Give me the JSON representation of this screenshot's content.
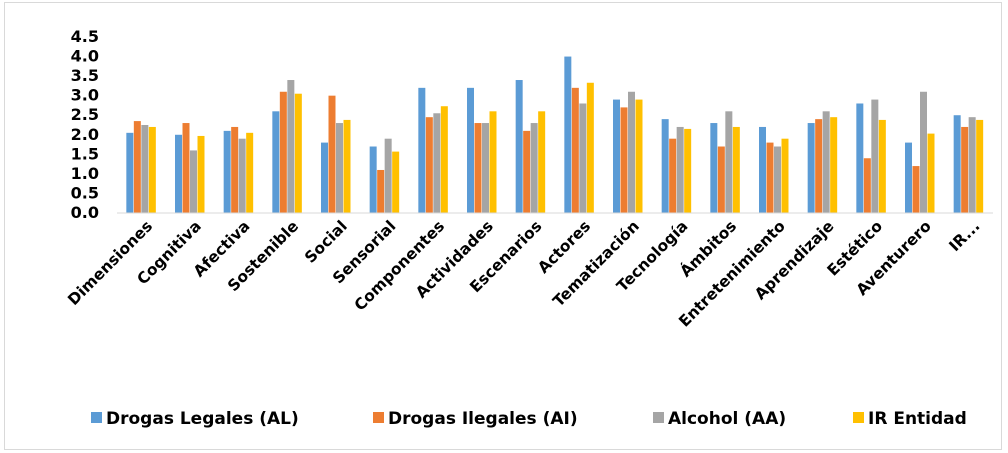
{
  "chart_data": {
    "type": "bar",
    "title": "",
    "xlabel": "",
    "ylabel": "",
    "ylim": [
      0,
      4.5
    ],
    "yticks": [
      "0.0",
      "0.5",
      "1.0",
      "1.5",
      "2.0",
      "2.5",
      "3.0",
      "3.5",
      "4.0",
      "4.5"
    ],
    "grid": false,
    "legend_position": "bottom",
    "categories": [
      "Dimensiones",
      "Cognitiva",
      "Afectiva",
      "Sostenible",
      "Social",
      "Sensorial",
      "Componentes",
      "Actividades",
      "Escenarios",
      "Actores",
      "Tematización",
      "Tecnología",
      "Ámbitos",
      "Entretenimiento",
      "Aprendizaje",
      "Estético",
      "Aventurero",
      "IR..."
    ],
    "series": [
      {
        "name": "Drogas Legales (AL)",
        "color": "#5b9bd5",
        "values": [
          2.05,
          2.0,
          2.1,
          2.6,
          1.8,
          1.7,
          3.2,
          3.2,
          3.4,
          4.0,
          2.9,
          2.4,
          2.3,
          2.2,
          2.3,
          2.8,
          1.8,
          2.5
        ]
      },
      {
        "name": "Drogas Ilegales (AI)",
        "color": "#ed7d31",
        "values": [
          2.35,
          2.3,
          2.2,
          3.1,
          3.0,
          1.1,
          2.45,
          2.3,
          2.1,
          3.2,
          2.7,
          1.9,
          1.7,
          1.8,
          2.4,
          1.4,
          1.2,
          2.2
        ]
      },
      {
        "name": "Alcohol (AA)",
        "color": "#a5a5a5",
        "values": [
          2.25,
          1.6,
          1.9,
          3.4,
          2.3,
          1.9,
          2.55,
          2.3,
          2.3,
          2.8,
          3.1,
          2.2,
          2.6,
          1.7,
          2.6,
          2.9,
          3.1,
          2.45
        ]
      },
      {
        "name": "IR Entidad",
        "color": "#ffc000",
        "values": [
          2.2,
          1.97,
          2.05,
          3.05,
          2.38,
          1.57,
          2.73,
          2.6,
          2.6,
          3.33,
          2.9,
          2.15,
          2.2,
          1.9,
          2.45,
          2.38,
          2.03,
          2.38
        ]
      }
    ]
  }
}
